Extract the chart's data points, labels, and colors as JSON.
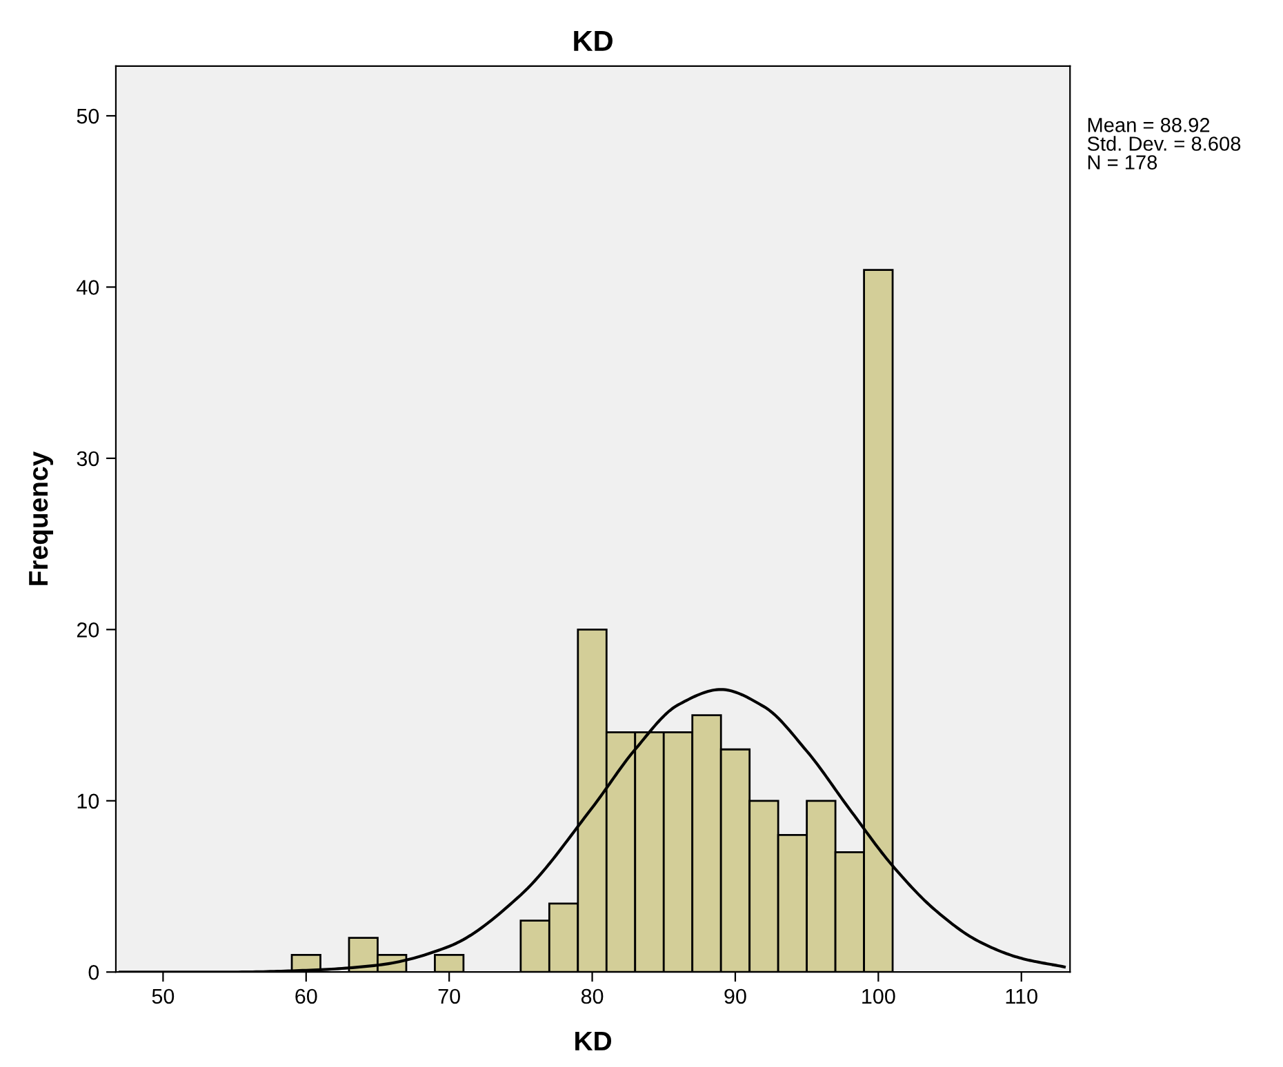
{
  "chart_data": {
    "type": "histogram",
    "title": "KD",
    "xlabel": "KD",
    "ylabel": "Frequency",
    "bins": [
      59,
      61,
      63,
      65,
      67,
      69,
      71,
      73,
      75,
      77,
      79,
      81,
      83,
      85,
      87,
      89,
      91,
      93,
      95,
      97,
      99,
      101
    ],
    "values": [
      1,
      0,
      2,
      1,
      0,
      1,
      0,
      0,
      3,
      4,
      20,
      14,
      14,
      14,
      15,
      13,
      10,
      8,
      10,
      7,
      41
    ],
    "color": "#d3ce98",
    "series": [
      {
        "type": "line",
        "color": "#000000",
        "x": [
          47,
          50,
          55,
          60,
          65,
          70,
          75,
          80,
          83,
          86,
          89,
          92,
          95,
          98,
          101,
          104,
          107,
          110,
          113
        ],
        "values": [
          0,
          0,
          0,
          0.1,
          0.4,
          1.5,
          4.5,
          9.6,
          13,
          15.6,
          16.5,
          15.5,
          12.9,
          9.5,
          6.2,
          3.6,
          1.8,
          0.8,
          0.3
        ]
      }
    ],
    "xlim": [
      46.7,
      113.4
    ],
    "ylim": [
      0,
      52.9
    ],
    "xticks": [
      50,
      60,
      70,
      80,
      90,
      100,
      110
    ],
    "yticks": [
      0,
      10,
      20,
      30,
      40,
      50
    ],
    "grid": false,
    "legend": false,
    "marker": "none",
    "line_style": "solid",
    "annotations": [
      "Mean = 88.92",
      "Std. Dev. = 8.608",
      "N = 178"
    ]
  }
}
